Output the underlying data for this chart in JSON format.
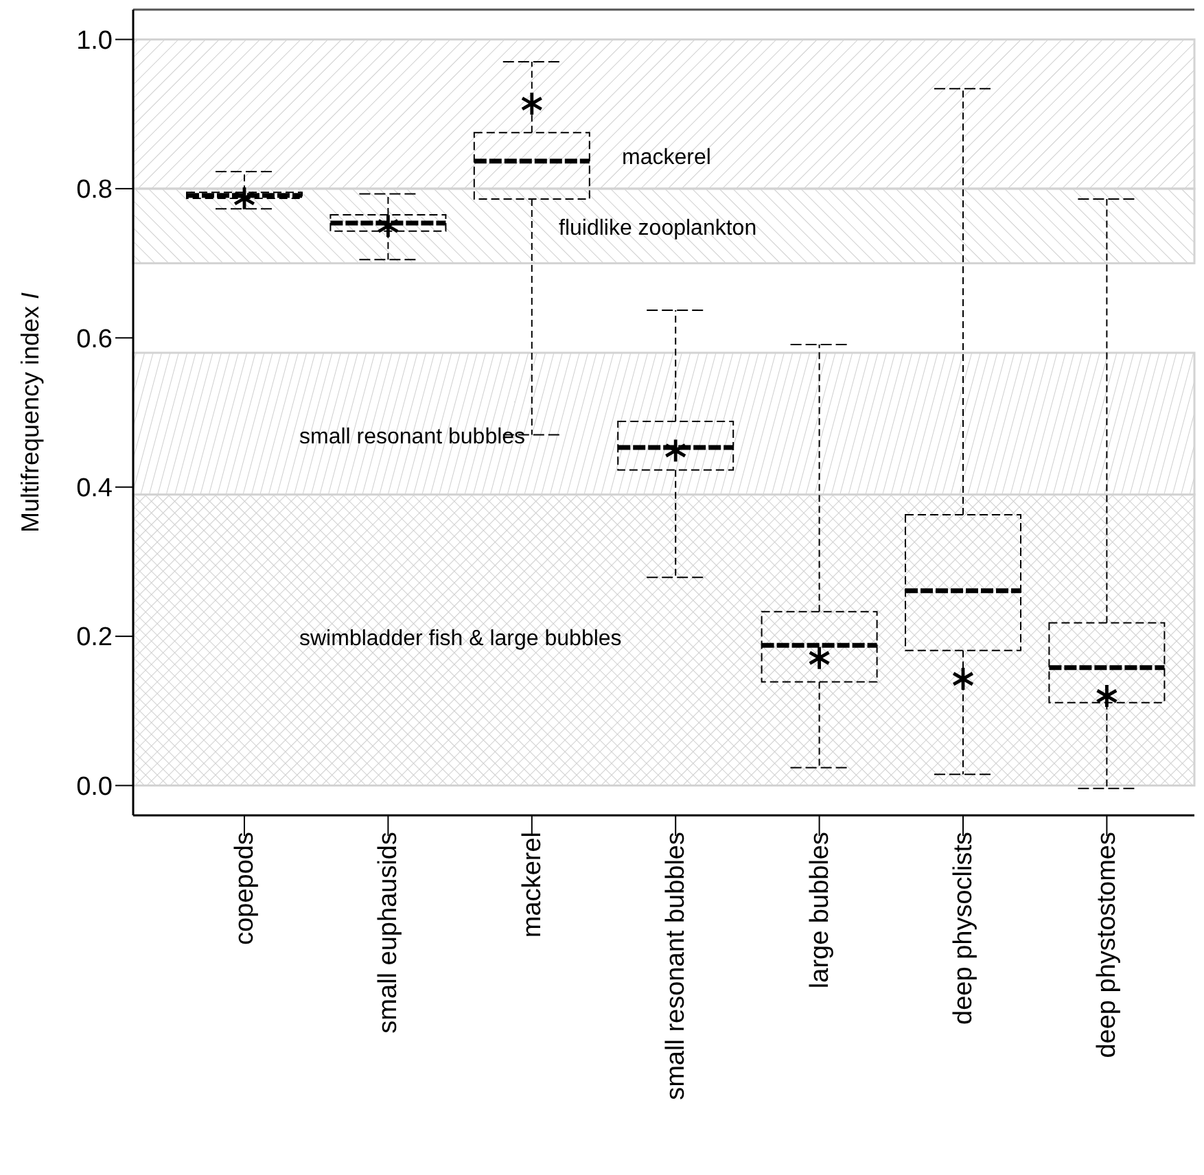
{
  "chart_data": {
    "type": "box",
    "ylabel": "Multifrequency index I",
    "categories": [
      "copepods",
      "small euphausids",
      "mackerel",
      "small resonant bubbles",
      "large bubbles",
      "deep physoclists",
      "deep phystostomes"
    ],
    "boxes": [
      {
        "low": 0.773,
        "q1": 0.787,
        "median": 0.791,
        "q3": 0.795,
        "high": 0.823,
        "mean": 0.787
      },
      {
        "low": 0.705,
        "q1": 0.743,
        "median": 0.754,
        "q3": 0.765,
        "high": 0.793,
        "mean": 0.75
      },
      {
        "low": 0.47,
        "q1": 0.786,
        "median": 0.837,
        "q3": 0.875,
        "high": 0.97,
        "mean": 0.914
      },
      {
        "low": 0.279,
        "q1": 0.423,
        "median": 0.453,
        "q3": 0.488,
        "high": 0.637,
        "mean": 0.449
      },
      {
        "low": 0.024,
        "q1": 0.139,
        "median": 0.188,
        "q3": 0.233,
        "high": 0.591,
        "mean": 0.171
      },
      {
        "low": 0.015,
        "q1": 0.181,
        "median": 0.261,
        "q3": 0.363,
        "high": 0.934,
        "mean": 0.143
      },
      {
        "low": -0.004,
        "q1": 0.111,
        "median": 0.158,
        "q3": 0.218,
        "high": 0.786,
        "mean": 0.12
      }
    ],
    "ylim": [
      -0.04,
      1.04
    ],
    "yticks": [
      {
        "value": 0,
        "label": "0.0"
      },
      {
        "value": 0.2,
        "label": "0.2"
      },
      {
        "value": 0.4,
        "label": "0.4"
      },
      {
        "value": 0.6,
        "label": "0.6"
      },
      {
        "value": 0.8,
        "label": "0.8"
      },
      {
        "value": 1,
        "label": "1.0"
      }
    ],
    "bands": [
      {
        "axis": "y",
        "from": 0.8,
        "to": 1.0,
        "label": "mackerel"
      },
      {
        "axis": "y",
        "from": 0.7,
        "to": 0.8,
        "label": "fluidlike zooplankton"
      },
      {
        "axis": "y",
        "from": 0.39,
        "to": 0.58,
        "label": "small resonant bubbles"
      },
      {
        "axis": "y",
        "from": 0,
        "to": 0.39,
        "label": "swimbladder fish & large bubbles"
      }
    ],
    "marker": "star",
    "grid": false
  }
}
